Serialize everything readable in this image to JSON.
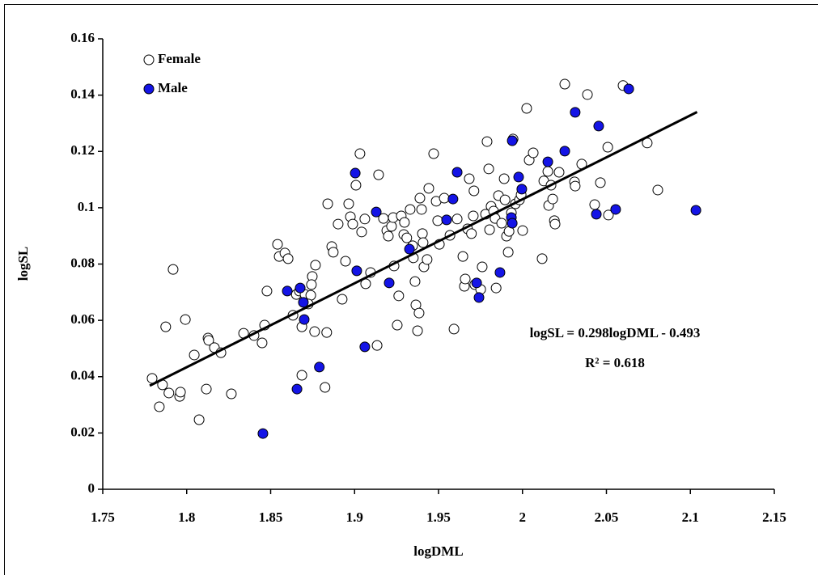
{
  "chart_data": {
    "type": "scatter",
    "x_label": "logDML",
    "y_label": "logSL",
    "xlim": [
      1.75,
      2.15
    ],
    "xticks": [
      1.75,
      1.8,
      1.85,
      1.9,
      1.95,
      2,
      2.05,
      2.1,
      2.15
    ],
    "ylim": [
      0,
      0.16
    ],
    "yticks": [
      0,
      0.02,
      0.04,
      0.06,
      0.08,
      0.1,
      0.12,
      0.14,
      0.16
    ],
    "grid": false,
    "legend": "upper left",
    "annotations": [
      "logSL = 0.298logDML - 0.493",
      "R² = 0.618"
    ],
    "trendline": {
      "x": [
        1.778,
        2.104
      ],
      "y": [
        0.0368,
        0.134
      ],
      "color": "#000000"
    },
    "series": [
      {
        "name": "Female",
        "color": "#ffffff",
        "x": [
          1.7794,
          1.7837,
          1.7856,
          1.7875,
          1.7894,
          1.7958,
          1.7963,
          1.7919,
          1.7992,
          1.8045,
          1.8074,
          1.8117,
          1.8127,
          1.8131,
          1.8165,
          1.8204,
          1.8266,
          1.8339,
          1.8401,
          1.8449,
          1.8464,
          1.8478,
          1.8541,
          1.8551,
          1.8585,
          1.8604,
          1.8633,
          1.8653,
          1.8671,
          1.8686,
          1.8705,
          1.8739,
          1.8724,
          1.8686,
          1.8767,
          1.8748,
          1.8743,
          1.8762,
          1.8824,
          1.8834,
          1.884,
          1.8864,
          1.8873,
          1.8902,
          1.8926,
          1.8946,
          1.8975,
          1.8989,
          1.8965,
          1.9008,
          1.9032,
          1.9042,
          1.9061,
          1.9066,
          1.9095,
          1.9134,
          1.9143,
          1.9172,
          1.9192,
          1.9201,
          1.922,
          1.923,
          1.9235,
          1.9254,
          1.9263,
          1.9278,
          1.9293,
          1.9297,
          1.9311,
          1.9331,
          1.9346,
          1.935,
          1.936,
          1.9365,
          1.9375,
          1.9384,
          1.9389,
          1.9399,
          1.9404,
          1.9408,
          1.9413,
          1.9432,
          1.9442,
          1.9471,
          1.9486,
          1.9495,
          1.9505,
          1.9534,
          1.9568,
          1.9592,
          1.9611,
          1.9645,
          1.9654,
          1.9659,
          1.9673,
          1.9683,
          1.9696,
          1.9707,
          1.9711,
          1.9716,
          1.9751,
          1.976,
          1.978,
          1.9789,
          1.9799,
          1.9804,
          1.9813,
          1.9828,
          1.9837,
          1.9843,
          1.9857,
          1.9876,
          1.9891,
          1.9896,
          1.9905,
          1.9915,
          1.992,
          1.9934,
          1.9944,
          1.9958,
          1.9982,
          1.9992,
          2.0001,
          2.0025,
          2.004,
          2.0064,
          2.0117,
          2.0127,
          2.0151,
          2.0156,
          2.017,
          2.018,
          2.019,
          2.0194,
          2.0218,
          2.0252,
          2.031,
          2.0314,
          2.0353,
          2.0387,
          2.043,
          2.0464,
          2.0508,
          2.0512,
          2.0599,
          2.0743,
          2.0806
        ],
        "values": [
          0.0394,
          0.0293,
          0.0371,
          0.0577,
          0.0342,
          0.033,
          0.0345,
          0.0781,
          0.0603,
          0.0477,
          0.0247,
          0.0356,
          0.0537,
          0.0529,
          0.0503,
          0.0485,
          0.0339,
          0.0554,
          0.0546,
          0.052,
          0.0583,
          0.0704,
          0.087,
          0.0827,
          0.0839,
          0.0819,
          0.0618,
          0.0692,
          0.0704,
          0.0577,
          0.0692,
          0.0689,
          0.0658,
          0.0405,
          0.0796,
          0.0756,
          0.0727,
          0.056,
          0.0362,
          0.0557,
          0.1014,
          0.0862,
          0.0842,
          0.0942,
          0.0675,
          0.081,
          0.0968,
          0.0942,
          0.1014,
          0.108,
          0.1192,
          0.0914,
          0.096,
          0.073,
          0.077,
          0.0511,
          0.1117,
          0.0962,
          0.0919,
          0.0899,
          0.0934,
          0.0965,
          0.0793,
          0.0583,
          0.0687,
          0.0971,
          0.0905,
          0.0948,
          0.0893,
          0.0994,
          0.0865,
          0.0822,
          0.0738,
          0.0655,
          0.0563,
          0.0626,
          0.1034,
          0.0994,
          0.0908,
          0.0876,
          0.079,
          0.0816,
          0.1069,
          0.1192,
          0.1023,
          0.0954,
          0.087,
          0.1034,
          0.0902,
          0.0569,
          0.096,
          0.0827,
          0.0721,
          0.0747,
          0.0925,
          0.1103,
          0.0908,
          0.0971,
          0.106,
          0.0727,
          0.071,
          0.079,
          0.0977,
          0.1235,
          0.1138,
          0.0922,
          0.1005,
          0.0988,
          0.0962,
          0.0715,
          0.1043,
          0.0945,
          0.1103,
          0.1028,
          0.0899,
          0.0842,
          0.0916,
          0.0982,
          0.1244,
          0.1014,
          0.1028,
          0.1046,
          0.0919,
          0.1353,
          0.1169,
          0.1195,
          0.0819,
          0.1095,
          0.1129,
          0.1008,
          0.108,
          0.1031,
          0.0954,
          0.0942,
          0.1126,
          0.1439,
          0.1092,
          0.1077,
          0.1155,
          0.1402,
          0.1011,
          0.1089,
          0.1215,
          0.0974,
          0.1434,
          0.123,
          0.1063
        ]
      },
      {
        "name": "Male",
        "color": "#1414e6",
        "x": [
          1.8599,
          1.8676,
          1.8695,
          1.87,
          1.879,
          1.8657,
          1.8454,
          1.9004,
          1.9013,
          1.9129,
          1.9061,
          1.9327,
          1.9206,
          1.9611,
          1.9548,
          1.9586,
          1.9727,
          1.9741,
          1.9866,
          1.9939,
          1.9977,
          1.9996,
          1.9934,
          1.9939,
          2.0151,
          2.0252,
          2.0314,
          2.0454,
          2.044,
          2.0555,
          2.0633,
          2.1033
        ],
        "values": [
          0.0704,
          0.0715,
          0.0664,
          0.0603,
          0.0434,
          0.0356,
          0.0198,
          0.1123,
          0.0776,
          0.0985,
          0.0506,
          0.0853,
          0.0733,
          0.1126,
          0.0957,
          0.1031,
          0.0733,
          0.0681,
          0.077,
          0.1238,
          0.1109,
          0.1066,
          0.0965,
          0.0945,
          0.1163,
          0.1201,
          0.1339,
          0.129,
          0.0977,
          0.0994,
          0.1422,
          0.0991
        ]
      }
    ]
  }
}
